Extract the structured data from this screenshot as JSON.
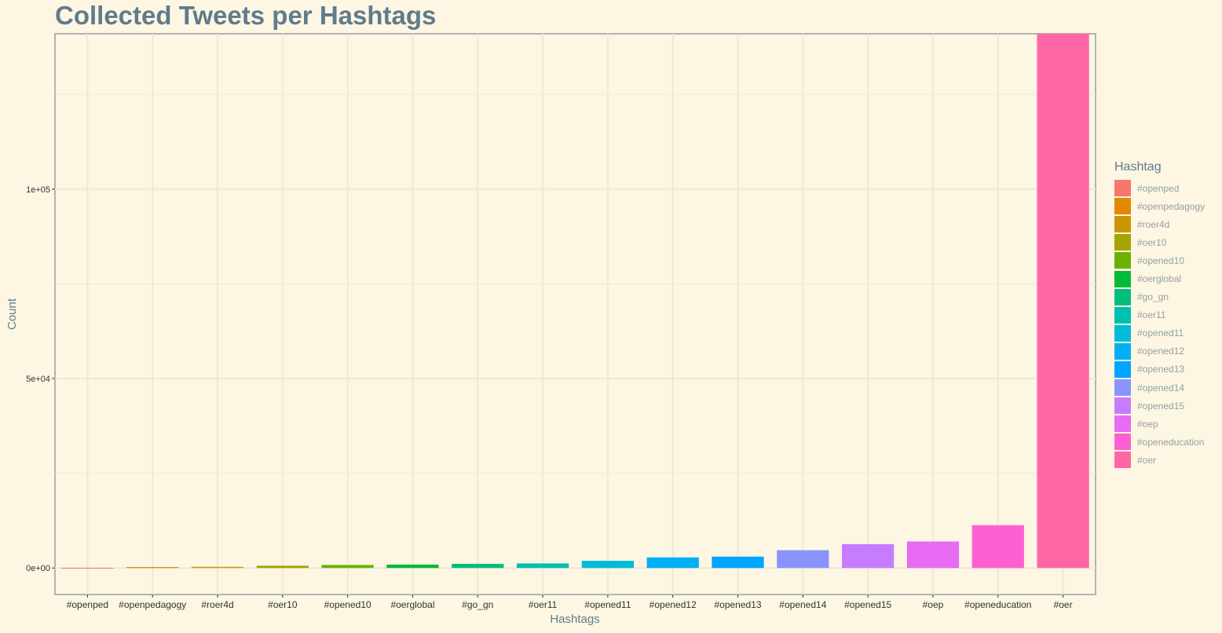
{
  "chart_data": {
    "type": "bar",
    "title": "Collected Tweets per Hashtags",
    "xlabel": "Hashtags",
    "ylabel": "Count",
    "ylim": [
      -7000,
      141000
    ],
    "yticks": [
      0,
      50000,
      100000
    ],
    "ytick_labels": [
      "0e+00",
      "5e+04",
      "1e+05"
    ],
    "grid": true,
    "legend_title": "Hashtag",
    "legend_position": "right",
    "categories": [
      "#openped",
      "#openpedagogy",
      "#roer4d",
      "#oer10",
      "#opened10",
      "#oerglobal",
      "#go_gn",
      "#oer11",
      "#opened11",
      "#opened12",
      "#opened13",
      "#opened14",
      "#opened15",
      "#oep",
      "#openeducation",
      "#oer"
    ],
    "values": [
      50,
      250,
      300,
      600,
      800,
      900,
      1100,
      1200,
      1900,
      2800,
      3000,
      4700,
      6300,
      7000,
      11300,
      141000
    ],
    "colors": [
      "#f8766d",
      "#e58700",
      "#c99800",
      "#a3a500",
      "#6bb100",
      "#00ba38",
      "#00bf7d",
      "#00c0af",
      "#00bcd8",
      "#00b0f6",
      "#00a5ff",
      "#8b93ff",
      "#c77cff",
      "#e76bf3",
      "#fd61d1",
      "#ff67a4"
    ]
  }
}
